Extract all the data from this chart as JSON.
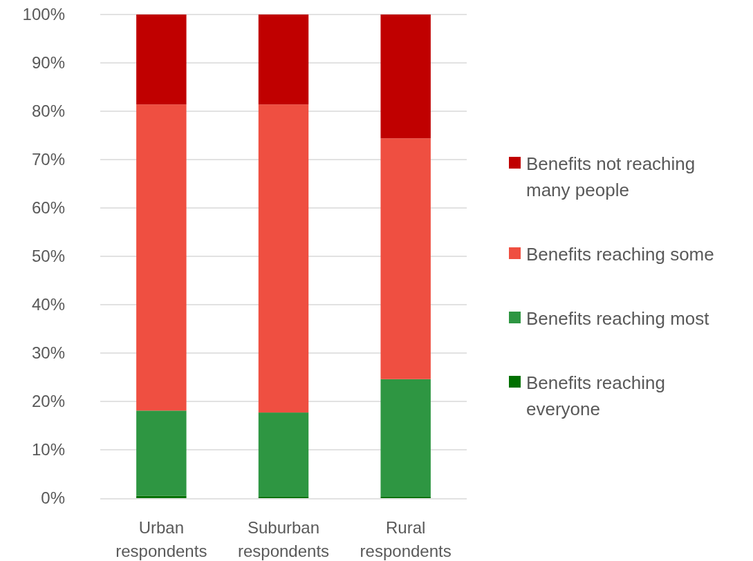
{
  "chart_data": {
    "type": "bar",
    "stacked": true,
    "categories": [
      "Urban respondents",
      "Suburban respondents",
      "Rural respondents"
    ],
    "series": [
      {
        "name": "Benefits reaching everyone",
        "color": "#007000",
        "values": [
          0.5,
          0.3,
          0.3
        ]
      },
      {
        "name": "Benefits reaching most",
        "color": "#2e9642",
        "values": [
          17.6,
          17.4,
          24.3
        ]
      },
      {
        "name": "Benefits reaching some",
        "color": "#ef4f41",
        "values": [
          63.3,
          63.7,
          49.8
        ]
      },
      {
        "name": "Benefits not reaching many people",
        "color": "#c00000",
        "values": [
          18.6,
          18.6,
          25.6
        ]
      }
    ],
    "ylim": [
      0,
      100
    ],
    "yticks": [
      {
        "value": 0,
        "label": "0%"
      },
      {
        "value": 10,
        "label": "10%"
      },
      {
        "value": 20,
        "label": "20%"
      },
      {
        "value": 30,
        "label": "30%"
      },
      {
        "value": 40,
        "label": "40%"
      },
      {
        "value": 50,
        "label": "50%"
      },
      {
        "value": 60,
        "label": "60%"
      },
      {
        "value": 70,
        "label": "70%"
      },
      {
        "value": 80,
        "label": "80%"
      },
      {
        "value": 90,
        "label": "90%"
      },
      {
        "value": 100,
        "label": "100%"
      }
    ],
    "grid": "y",
    "legend": "right"
  }
}
